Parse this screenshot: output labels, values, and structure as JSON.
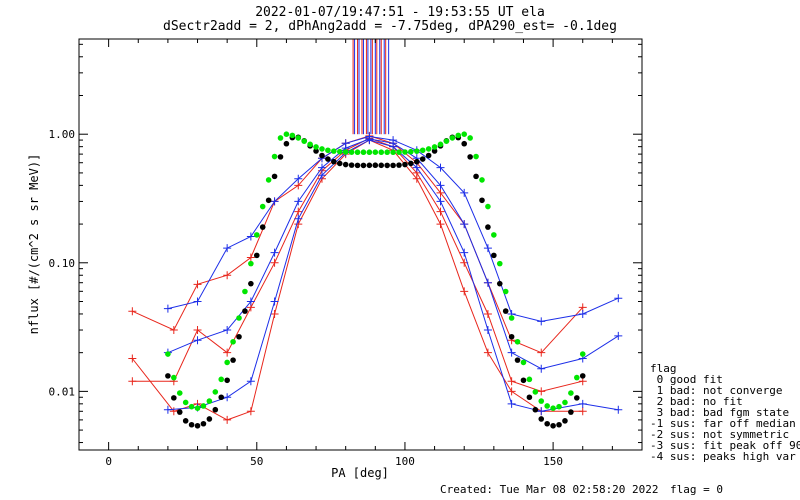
{
  "chart_data": {
    "type": "scatter",
    "title": "2022-01-07/19:47:51 - 19:53:55 UT ela",
    "subtitle": "dSectr2add = 2, dPhAng2add = -7.75deg, dPA290_est=  -0.1deg",
    "xlabel": "PA [deg]",
    "ylabel": "nflux [#/(cm^2 s sr MeV)]",
    "xlim": [
      -10,
      180
    ],
    "ylim": [
      0.0035,
      5.5
    ],
    "yscale": "log",
    "x_ticks": [
      0,
      50,
      100,
      150
    ],
    "x_tick_labels": [
      "0",
      "50",
      "100",
      "150"
    ],
    "y_ticks": [
      0.01,
      0.1,
      1.0
    ],
    "y_tick_labels": [
      "0.01",
      "0.10",
      "1.00"
    ],
    "grid": false,
    "colors": {
      "red": "#e8261c",
      "blue": "#1c2ee8",
      "green": "#00e600",
      "black": "#000000"
    },
    "series": [
      {
        "color": "#e8261c",
        "marker": "+",
        "style": "lines-markers",
        "x": [
          8,
          22,
          30,
          40,
          48,
          56,
          64,
          72,
          80,
          88,
          96,
          104,
          112,
          120,
          128,
          136,
          146,
          160
        ],
        "y": [
          0.042,
          0.03,
          0.068,
          0.08,
          0.11,
          0.3,
          0.4,
          0.65,
          0.85,
          0.97,
          0.85,
          0.6,
          0.35,
          0.2,
          0.07,
          0.025,
          0.02,
          0.045
        ]
      },
      {
        "color": "#e8261c",
        "marker": "+",
        "style": "lines-markers",
        "x": [
          8,
          22,
          30,
          40,
          48,
          56,
          64,
          72,
          80,
          88,
          96,
          104,
          112,
          120,
          128,
          136,
          146,
          160
        ],
        "y": [
          0.012,
          0.012,
          0.03,
          0.02,
          0.045,
          0.1,
          0.25,
          0.52,
          0.75,
          0.93,
          0.8,
          0.5,
          0.25,
          0.1,
          0.04,
          0.012,
          0.01,
          0.012
        ]
      },
      {
        "color": "#e8261c",
        "marker": "+",
        "style": "lines-markers",
        "x": [
          8,
          22,
          30,
          40,
          48,
          56,
          64,
          72,
          80,
          88,
          96,
          104,
          112,
          120,
          128,
          136,
          146,
          160
        ],
        "y": [
          0.018,
          0.007,
          0.008,
          0.006,
          0.007,
          0.04,
          0.2,
          0.45,
          0.7,
          0.9,
          0.75,
          0.45,
          0.2,
          0.06,
          0.02,
          0.01,
          0.007,
          0.007
        ]
      },
      {
        "color": "#1c2ee8",
        "marker": "+",
        "style": "lines-markers",
        "x": [
          20,
          30,
          40,
          48,
          56,
          64,
          72,
          80,
          88,
          96,
          104,
          112,
          120,
          128,
          136,
          146,
          160,
          172
        ],
        "y": [
          0.044,
          0.05,
          0.13,
          0.16,
          0.3,
          0.45,
          0.65,
          0.85,
          0.96,
          0.9,
          0.75,
          0.55,
          0.35,
          0.13,
          0.04,
          0.035,
          0.04,
          0.053
        ]
      },
      {
        "color": "#1c2ee8",
        "marker": "+",
        "style": "lines-markers",
        "x": [
          20,
          30,
          40,
          48,
          56,
          64,
          72,
          80,
          88,
          96,
          104,
          112,
          120,
          128,
          136,
          146,
          160,
          172
        ],
        "y": [
          0.02,
          0.025,
          0.03,
          0.05,
          0.12,
          0.3,
          0.55,
          0.78,
          0.92,
          0.85,
          0.65,
          0.4,
          0.2,
          0.07,
          0.02,
          0.015,
          0.018,
          0.027
        ]
      },
      {
        "color": "#1c2ee8",
        "marker": "+",
        "style": "lines-markers",
        "x": [
          20,
          30,
          40,
          48,
          56,
          64,
          72,
          80,
          88,
          96,
          104,
          112,
          120,
          128,
          136,
          146,
          160,
          172
        ],
        "y": [
          0.0072,
          0.0075,
          0.009,
          0.012,
          0.05,
          0.22,
          0.48,
          0.72,
          0.9,
          0.8,
          0.55,
          0.3,
          0.12,
          0.03,
          0.008,
          0.007,
          0.008,
          0.0072
        ]
      },
      {
        "name": "",
        "color": "#000000",
        "marker": "dot",
        "style": "markers",
        "x": [
          20,
          22,
          24,
          26,
          28,
          30,
          32,
          34,
          36,
          38,
          40,
          42,
          44,
          46,
          48,
          50,
          52,
          54,
          56,
          58,
          60,
          62,
          64,
          66,
          68,
          70,
          72,
          74,
          76,
          78,
          80,
          82,
          84,
          86,
          88,
          90,
          92,
          94,
          96,
          98,
          100,
          102,
          104,
          106,
          108,
          110,
          112,
          114,
          116,
          118,
          120,
          122,
          124,
          126,
          128,
          130,
          132,
          134,
          136,
          138,
          140,
          142,
          144,
          146,
          148,
          150,
          152,
          154,
          156,
          158,
          160
        ],
        "y": [
          0.0132,
          0.0089,
          0.0069,
          0.0059,
          0.0055,
          0.0054,
          0.0056,
          0.0061,
          0.0072,
          0.009,
          0.0122,
          0.0175,
          0.0266,
          0.0421,
          0.0688,
          0.1142,
          0.1895,
          0.3063,
          0.4699,
          0.6662,
          0.8434,
          0.9412,
          0.9462,
          0.8883,
          0.8115,
          0.7404,
          0.6824,
          0.6405,
          0.6114,
          0.5924,
          0.5808,
          0.5747,
          0.5722,
          0.5719,
          0.5727,
          0.5739,
          0.5727,
          0.5719,
          0.5722,
          0.5747,
          0.5808,
          0.5924,
          0.6114,
          0.6405,
          0.6824,
          0.7404,
          0.8115,
          0.8883,
          0.9462,
          0.9412,
          0.8434,
          0.6662,
          0.4699,
          0.3063,
          0.1895,
          0.1142,
          0.0688,
          0.0421,
          0.0266,
          0.0175,
          0.0122,
          0.009,
          0.0072,
          0.0061,
          0.0056,
          0.0054,
          0.0055,
          0.0059,
          0.0069,
          0.0089,
          0.0132
        ]
      },
      {
        "name": "",
        "color": "#00e600",
        "marker": "dot",
        "style": "markers",
        "x": [
          20,
          22,
          24,
          26,
          28,
          30,
          32,
          34,
          36,
          38,
          40,
          42,
          44,
          46,
          48,
          50,
          52,
          54,
          56,
          58,
          60,
          62,
          64,
          66,
          68,
          70,
          72,
          74,
          76,
          78,
          80,
          82,
          84,
          86,
          88,
          90,
          92,
          94,
          96,
          98,
          100,
          102,
          104,
          106,
          108,
          110,
          112,
          114,
          116,
          118,
          120,
          122,
          124,
          126,
          128,
          130,
          132,
          134,
          136,
          138,
          140,
          142,
          144,
          146,
          148,
          150,
          152,
          154,
          156,
          158,
          160
        ],
        "y": [
          0.0195,
          0.0128,
          0.0097,
          0.0082,
          0.0076,
          0.0074,
          0.0077,
          0.0084,
          0.0099,
          0.0124,
          0.0168,
          0.0243,
          0.0372,
          0.0598,
          0.0985,
          0.1648,
          0.2737,
          0.441,
          0.6706,
          0.9348,
          1.0,
          0.9794,
          0.9357,
          0.8825,
          0.8339,
          0.7955,
          0.7683,
          0.75,
          0.7384,
          0.7313,
          0.7272,
          0.725,
          0.7241,
          0.724,
          0.7243,
          0.7246,
          0.7243,
          0.724,
          0.7241,
          0.725,
          0.7272,
          0.7313,
          0.7384,
          0.75,
          0.7683,
          0.7955,
          0.8339,
          0.8825,
          0.9357,
          0.9794,
          1.0,
          0.9348,
          0.6706,
          0.441,
          0.2737,
          0.1648,
          0.0985,
          0.0598,
          0.0372,
          0.0243,
          0.0168,
          0.0124,
          0.0099,
          0.0084,
          0.0077,
          0.0074,
          0.0076,
          0.0082,
          0.0097,
          0.0128,
          0.0195
        ]
      }
    ],
    "peak_markers": {
      "red_x": [
        82.5,
        84,
        85.5,
        87,
        89,
        90.5,
        92,
        93.5
      ],
      "blue_x": [
        83,
        84.5,
        86,
        87.5,
        88.5,
        90,
        91.5,
        93,
        94.5
      ]
    }
  },
  "legend": {
    "title": "flag",
    "items": [
      " 0 good fit",
      " 1 bad: not converge",
      " 2 bad: no fit",
      " 3 bad: bad fgm state",
      "-1 sus: far off median",
      "-2 sus: not symmetric",
      "-3 sus: fit peak off 90",
      "-4 sus: peaks high var"
    ]
  },
  "footer": {
    "created": "Created: Tue Mar 08 02:58:20 2022",
    "flag": "flag = 0"
  }
}
